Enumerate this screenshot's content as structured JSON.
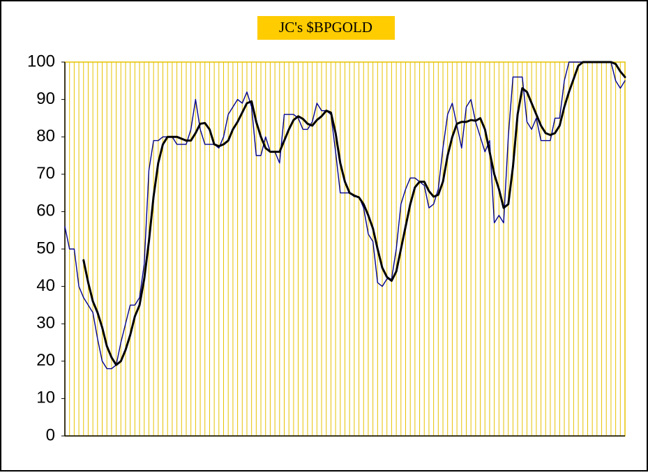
{
  "chart_data": {
    "type": "line",
    "title": "JC's $BPGOLD",
    "categories": [
      null,
      null,
      null,
      null,
      null,
      null,
      null,
      null,
      null,
      null,
      null,
      null,
      null,
      null,
      null,
      null,
      null,
      null,
      null,
      null,
      null,
      null,
      null,
      null,
      null,
      null,
      null,
      null,
      null,
      null,
      null,
      null,
      null,
      null,
      null,
      null,
      null,
      null,
      null,
      null,
      null,
      null,
      null,
      null,
      null,
      null,
      null,
      null,
      null,
      null,
      null,
      null,
      null,
      null,
      null,
      null,
      null,
      null,
      null,
      null,
      null,
      null,
      null,
      null,
      null,
      null,
      null,
      null,
      null,
      null,
      null,
      null,
      null,
      null,
      null,
      null,
      null,
      null,
      null,
      null,
      null,
      null,
      null,
      null,
      null,
      null,
      null,
      null,
      null,
      null,
      null,
      null,
      null,
      null,
      null,
      null,
      null,
      null,
      null,
      null,
      null,
      null,
      null,
      null,
      null,
      null,
      null,
      null,
      null,
      null,
      null,
      null,
      null,
      null,
      null,
      null,
      null,
      null,
      null,
      null,
      null
    ],
    "series": [
      {
        "color": "#00008b",
        "width": 1.4,
        "values": [
          56,
          50,
          50,
          40,
          37,
          35,
          33,
          26,
          20,
          18,
          18,
          19,
          25,
          30,
          35,
          35,
          37,
          46,
          71,
          79,
          79,
          80,
          80,
          80,
          78,
          78,
          78,
          82,
          90,
          82,
          78,
          78,
          78,
          77,
          80,
          86,
          88,
          90,
          89,
          92,
          88,
          75,
          75,
          80,
          76,
          76,
          73,
          86,
          86,
          86,
          85,
          82,
          82,
          84,
          89,
          87,
          87,
          86,
          76,
          65,
          65,
          65,
          64,
          64,
          61,
          54,
          52,
          41,
          40,
          42,
          42,
          50,
          62,
          66,
          69,
          69,
          68,
          67,
          61,
          62,
          66,
          77,
          86,
          89,
          83,
          77,
          88,
          90,
          84,
          80,
          76,
          79,
          57,
          59,
          57,
          80,
          96,
          96,
          96,
          84,
          82,
          85,
          79,
          79,
          79,
          85,
          85,
          95,
          100,
          100,
          100,
          100,
          100,
          100,
          100,
          100,
          100,
          100,
          95,
          93,
          95
        ]
      },
      {
        "color": "#000000",
        "width": 3,
        "values": [
          null,
          null,
          null,
          null,
          47,
          41,
          36,
          33,
          29,
          24,
          21,
          19,
          20,
          23,
          27,
          32,
          35,
          42,
          52,
          64,
          73,
          78,
          80,
          80,
          80,
          79.5,
          79,
          79,
          81,
          83.5,
          83.7,
          82,
          78,
          77.5,
          78,
          79,
          82,
          84,
          86.5,
          89,
          89.5,
          84,
          80,
          77,
          76,
          76,
          76,
          79,
          82,
          84.5,
          85.5,
          84.8,
          83.5,
          83,
          84.5,
          85.5,
          87,
          86.5,
          81,
          73,
          68,
          65,
          64.3,
          63.8,
          62,
          59,
          55.5,
          50,
          45,
          42.5,
          41.5,
          44,
          50,
          56,
          62,
          66.5,
          68,
          68,
          65.5,
          64,
          64.5,
          68,
          75,
          80,
          83.5,
          84,
          84,
          84.5,
          84.3,
          85,
          82,
          76,
          70,
          66,
          61,
          62,
          72,
          86,
          93,
          92,
          89,
          86,
          83,
          81,
          80.5,
          81,
          83,
          88,
          92,
          95.5,
          99,
          100,
          100,
          100,
          100,
          100,
          100,
          100,
          99.5,
          97.5,
          96
        ]
      }
    ],
    "ylim": [
      0,
      100
    ],
    "yticks": [
      0,
      10,
      20,
      30,
      40,
      50,
      60,
      70,
      80,
      90,
      100
    ],
    "xgrid": true,
    "grid_color": "#e6c200",
    "title_background": "#ffcc00"
  }
}
